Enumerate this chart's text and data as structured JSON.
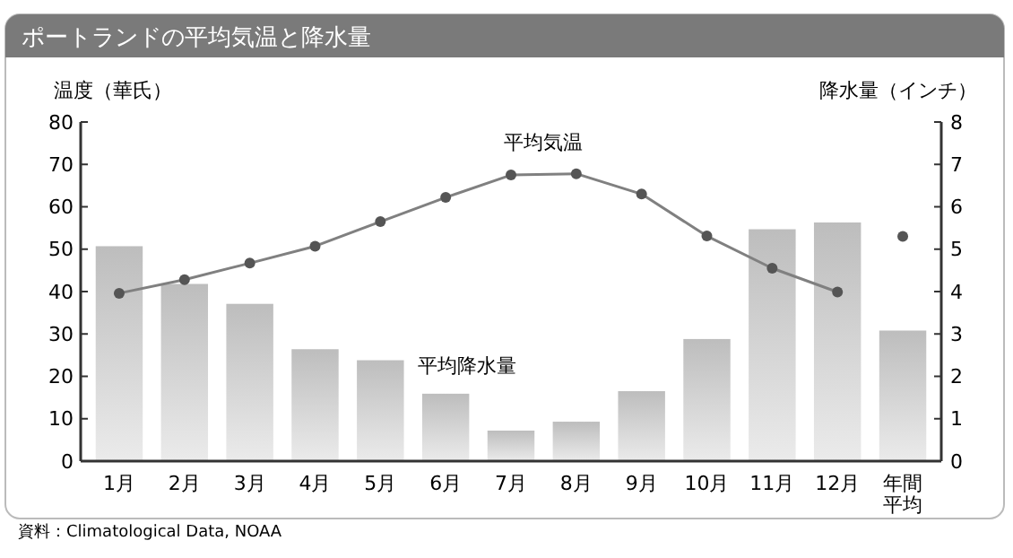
{
  "chart_data": {
    "type": "bar",
    "title": "ポートランドの平均気温と降水量",
    "categories": [
      "1月",
      "2月",
      "3月",
      "4月",
      "5月",
      "6月",
      "7月",
      "8月",
      "9月",
      "10月",
      "11月",
      "12月",
      "年間平均"
    ],
    "series": [
      {
        "name": "平均降水量",
        "axis": "y2",
        "color": "#bdbdbd",
        "values": [
          5.07,
          4.18,
          3.71,
          2.64,
          2.38,
          1.59,
          0.72,
          0.93,
          1.65,
          2.88,
          5.47,
          5.63,
          3.08
        ]
      },
      {
        "name": "平均気温",
        "type": "line",
        "color": "#808080",
        "values": [
          39.6,
          42.8,
          46.7,
          50.7,
          56.5,
          62.2,
          67.5,
          67.8,
          63.0,
          53.1,
          45.5,
          39.9,
          null
        ]
      },
      {
        "type": "scatter",
        "color": "#555555",
        "values": [
          null,
          null,
          null,
          null,
          null,
          null,
          null,
          null,
          null,
          null,
          null,
          null,
          53.0
        ]
      }
    ],
    "ylabel": "温度（華氏）",
    "y2label": "降水量（インチ）",
    "ylim": [
      0,
      80
    ],
    "yticks": [
      0,
      10,
      20,
      30,
      40,
      50,
      60,
      70,
      80
    ],
    "y2lim": [
      0,
      8
    ],
    "y2ticks": [
      0,
      1,
      2,
      3,
      4,
      5,
      6,
      7,
      8
    ],
    "marker": "circle",
    "grid": false,
    "annotations": [
      "資料：Climatological Data, NOAA"
    ]
  }
}
